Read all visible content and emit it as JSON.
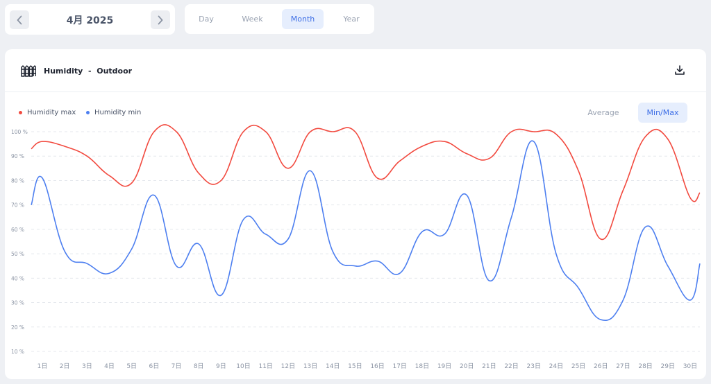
{
  "date_nav": {
    "label": "4月 2025",
    "prev_icon": "chevron-left-icon",
    "next_icon": "chevron-right-icon"
  },
  "period_tabs": [
    {
      "label": "Day",
      "active": false
    },
    {
      "label": "Week",
      "active": false
    },
    {
      "label": "Month",
      "active": true
    },
    {
      "label": "Year",
      "active": false
    }
  ],
  "card": {
    "title": "Humidity  -  Outdoor",
    "icon": "fence-icon",
    "download_icon": "download-icon"
  },
  "modes": [
    {
      "label": "Average",
      "active": false
    },
    {
      "label": "Min/Max",
      "active": true
    }
  ],
  "colors": {
    "max": "#f24a3f",
    "min": "#4d7ff0",
    "accent": "#3d6ee6"
  },
  "chart_data": {
    "type": "line",
    "x": [
      "1日",
      "2日",
      "3日",
      "4日",
      "5日",
      "6日",
      "7日",
      "8日",
      "9日",
      "10日",
      "11日",
      "12日",
      "13日",
      "14日",
      "15日",
      "16日",
      "17日",
      "18日",
      "19日",
      "20日",
      "21日",
      "22日",
      "23日",
      "24日",
      "25日",
      "26日",
      "27日",
      "28日",
      "29日",
      "30日"
    ],
    "series": [
      {
        "name": "Humidity max",
        "color": "#f24a3f",
        "values": [
          96,
          94,
          90,
          82,
          79,
          100,
          100,
          83,
          80,
          100,
          100,
          85,
          100,
          100,
          100,
          81,
          88,
          94,
          96,
          91,
          89,
          100,
          100,
          99,
          84,
          56,
          76,
          98,
          97,
          73
        ]
      },
      {
        "name": "Humidity min",
        "color": "#4d7ff0",
        "values": [
          81,
          51,
          46,
          42,
          52,
          74,
          45,
          54,
          33,
          64,
          58,
          56,
          84,
          51,
          45,
          47,
          42,
          59,
          58,
          74,
          39,
          65,
          96,
          50,
          36,
          23,
          31,
          61,
          45,
          31
        ]
      }
    ],
    "start_value": {
      "max": 93,
      "min": 70
    },
    "end_value": {
      "max": 75,
      "min": 46
    },
    "yticks": [
      "10 %",
      "20 %",
      "30 %",
      "40 %",
      "50 %",
      "60 %",
      "70 %",
      "80 %",
      "90 %",
      "100 %"
    ],
    "ylim": [
      10,
      100
    ],
    "grid": true,
    "legend_position": "top-left"
  }
}
